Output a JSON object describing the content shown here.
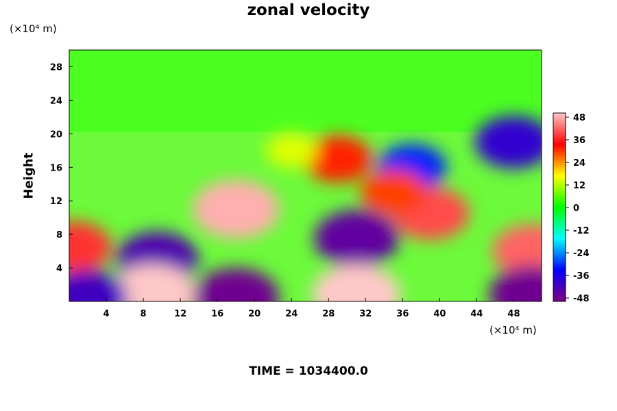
{
  "chart_data": {
    "type": "heatmap",
    "title": "zonal velocity",
    "ylabel": "Height",
    "xlabel": "",
    "x_unit": "(×10⁴ m)",
    "y_unit": "(×10⁴ m)",
    "xlim": [
      0,
      51
    ],
    "ylim": [
      0,
      30
    ],
    "x_ticks": [
      4,
      8,
      12,
      16,
      20,
      24,
      28,
      32,
      36,
      40,
      44,
      48
    ],
    "y_ticks": [
      4,
      8,
      12,
      16,
      20,
      24,
      28
    ],
    "colorbar": {
      "min": -48,
      "max": 48,
      "ticks": [
        48,
        36,
        24,
        12,
        0,
        -12,
        -24,
        -36,
        -48
      ],
      "colors": [
        "#ffc8c8",
        "#ff0000",
        "#ffff00",
        "#00ff00",
        "#00ffff",
        "#0000ff",
        "#800080"
      ]
    },
    "features": [
      {
        "x": 18,
        "y": 11,
        "value": 46
      },
      {
        "x": 29,
        "y": 17,
        "value": 30
      },
      {
        "x": 9.5,
        "y": 5,
        "value": -42
      },
      {
        "x": 31,
        "y": 7.5,
        "value": -44
      },
      {
        "x": 37,
        "y": 16,
        "value": -30
      },
      {
        "x": 48,
        "y": 19,
        "value": -38
      },
      {
        "x": 50,
        "y": 6,
        "value": 40
      },
      {
        "x": 0.5,
        "y": 6.5,
        "value": 36
      },
      {
        "x": 9,
        "y": 0.8,
        "value": 48
      },
      {
        "x": 31,
        "y": 0.8,
        "value": 48
      },
      {
        "x": 18,
        "y": 0.5,
        "value": -46
      },
      {
        "x": 2,
        "y": 0.5,
        "value": -40
      },
      {
        "x": 50,
        "y": 0.8,
        "value": -46
      },
      {
        "x": 39,
        "y": 10.5,
        "value": 38
      },
      {
        "x": 35,
        "y": 13,
        "value": 28
      },
      {
        "x": 24,
        "y": 18,
        "value": 14
      }
    ],
    "time_label": "TIME = 1034400.0"
  }
}
